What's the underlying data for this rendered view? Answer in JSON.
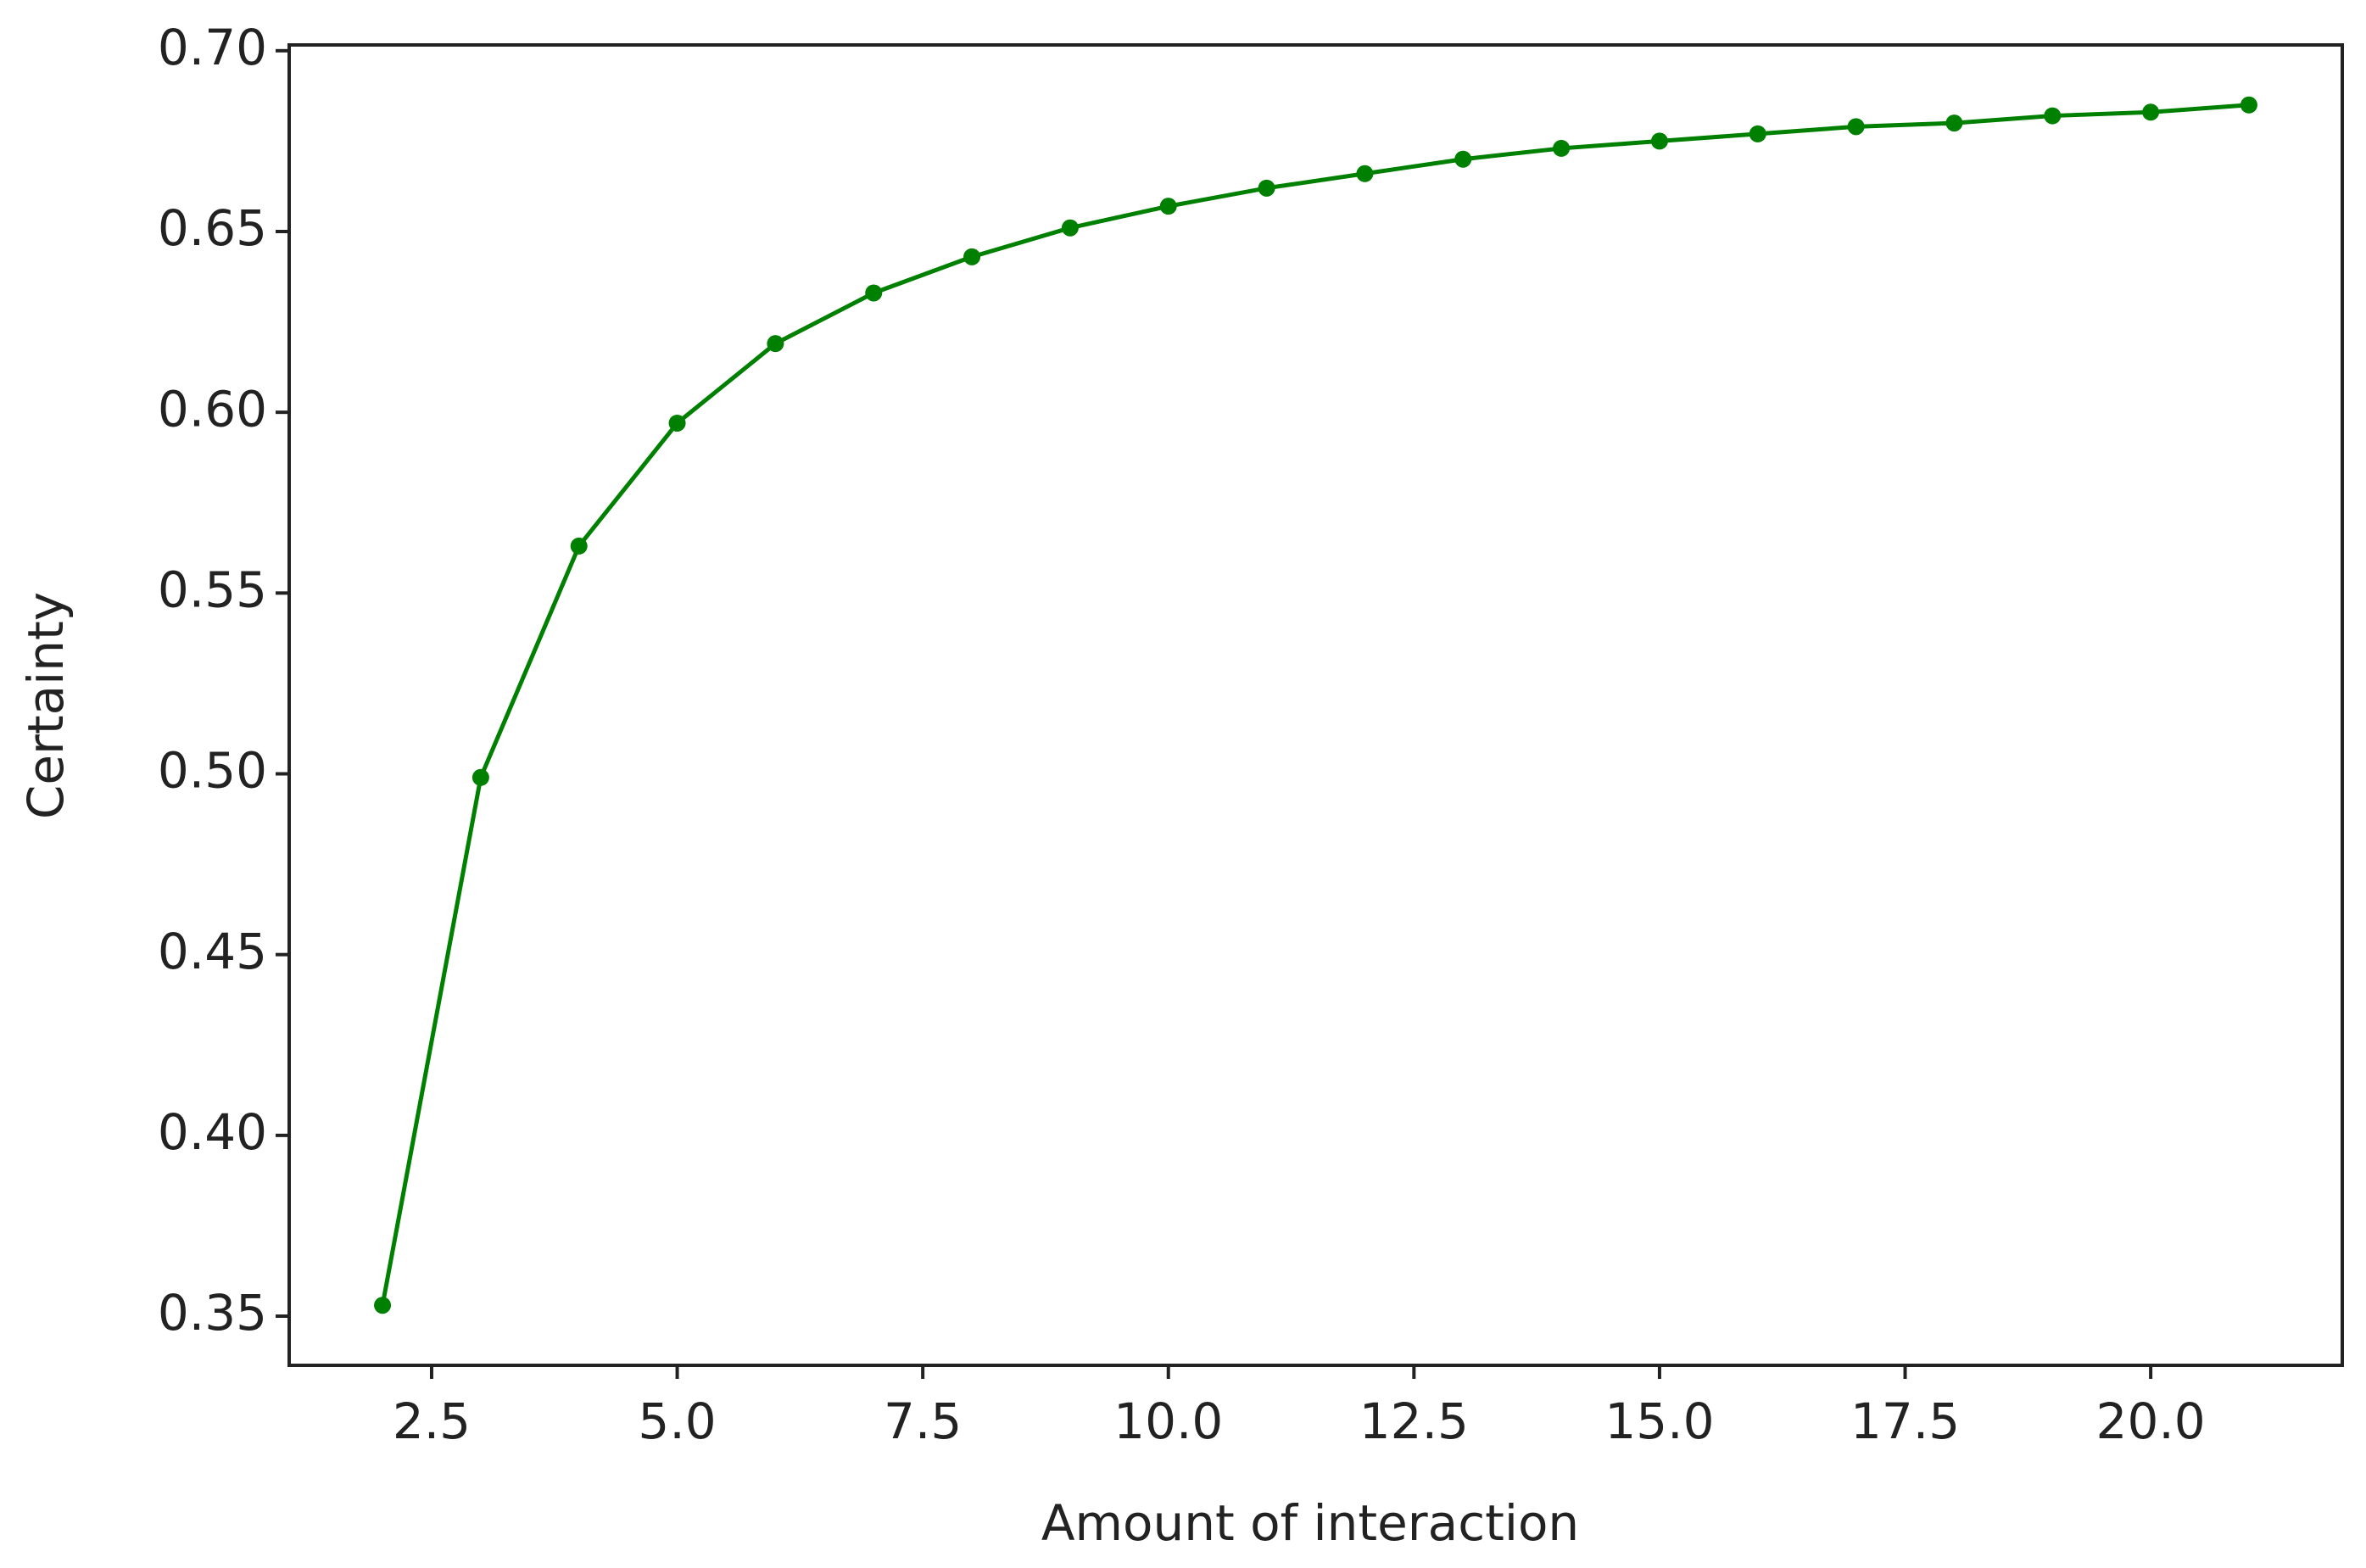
{
  "chart_data": {
    "type": "line",
    "xlabel": "Amount of interaction",
    "ylabel": "Certainty",
    "x": [
      2,
      3,
      4,
      5,
      6,
      7,
      8,
      9,
      10,
      11,
      12,
      13,
      14,
      15,
      16,
      17,
      18,
      19,
      20,
      21
    ],
    "series": [
      {
        "color": "#008000",
        "values": [
          0.353,
          0.499,
          0.563,
          0.597,
          0.619,
          0.633,
          0.643,
          0.651,
          0.657,
          0.662,
          0.666,
          0.67,
          0.673,
          0.675,
          0.677,
          0.679,
          0.68,
          0.682,
          0.683,
          0.685
        ]
      }
    ],
    "xlim": [
      1.05,
      21.95
    ],
    "xticks": [
      {
        "value": 2.5,
        "label": "2.5"
      },
      {
        "value": 5,
        "label": "5.0"
      },
      {
        "value": 7.5,
        "label": "7.5"
      },
      {
        "value": 10,
        "label": "10.0"
      },
      {
        "value": 12.5,
        "label": "12.5"
      },
      {
        "value": 15,
        "label": "15.0"
      },
      {
        "value": 17.5,
        "label": "17.5"
      },
      {
        "value": 20,
        "label": "20.0"
      }
    ],
    "ylim": [
      0.3364,
      0.7016
    ],
    "yticks": [
      0.35,
      {
        "value": 0.4,
        "label": "0.40"
      },
      0.45,
      {
        "value": 0.5,
        "label": "0.50"
      },
      0.55,
      {
        "value": 0.6,
        "label": "0.60"
      },
      0.65,
      {
        "value": 0.7,
        "label": "0.70"
      }
    ],
    "grid": false
  }
}
